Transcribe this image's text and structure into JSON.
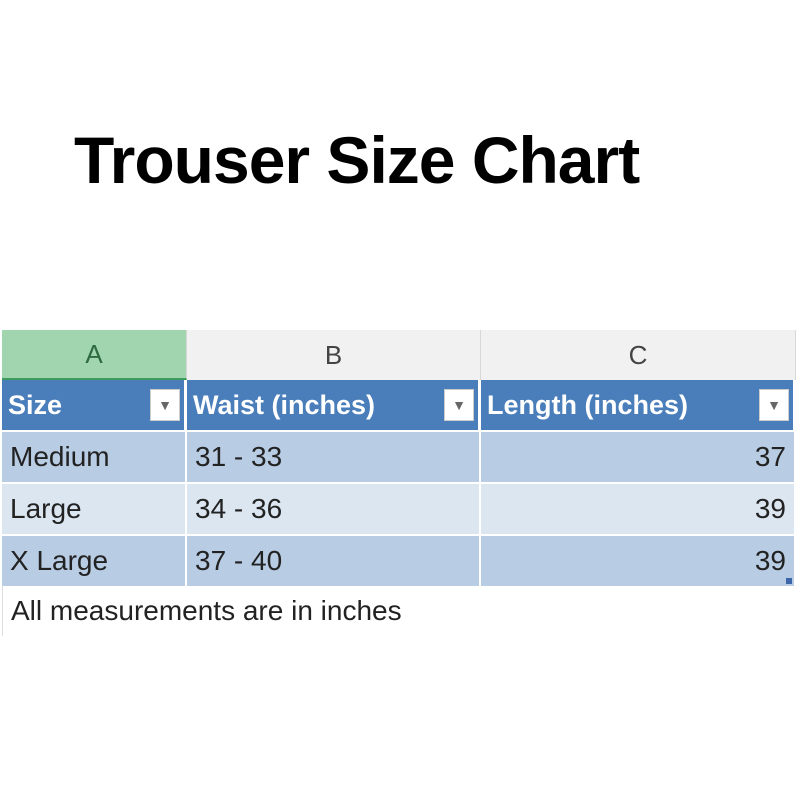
{
  "title": "Trouser Size Chart",
  "columns": [
    "A",
    "B",
    "C"
  ],
  "table": {
    "headers": [
      "Size",
      "Waist (inches)",
      "Length (inches)"
    ],
    "rows": [
      [
        "Medium",
        "31 - 33",
        "37"
      ],
      [
        "Large",
        "34 - 36",
        "39"
      ],
      [
        "X Large",
        "37 - 40",
        "39"
      ]
    ]
  },
  "note": "All measurements are in inches",
  "colors": {
    "header": "#4a7ebb",
    "band_dark": "#b8cce4",
    "band_light": "#dce6f1",
    "selected_col": "#a0d5b0"
  }
}
